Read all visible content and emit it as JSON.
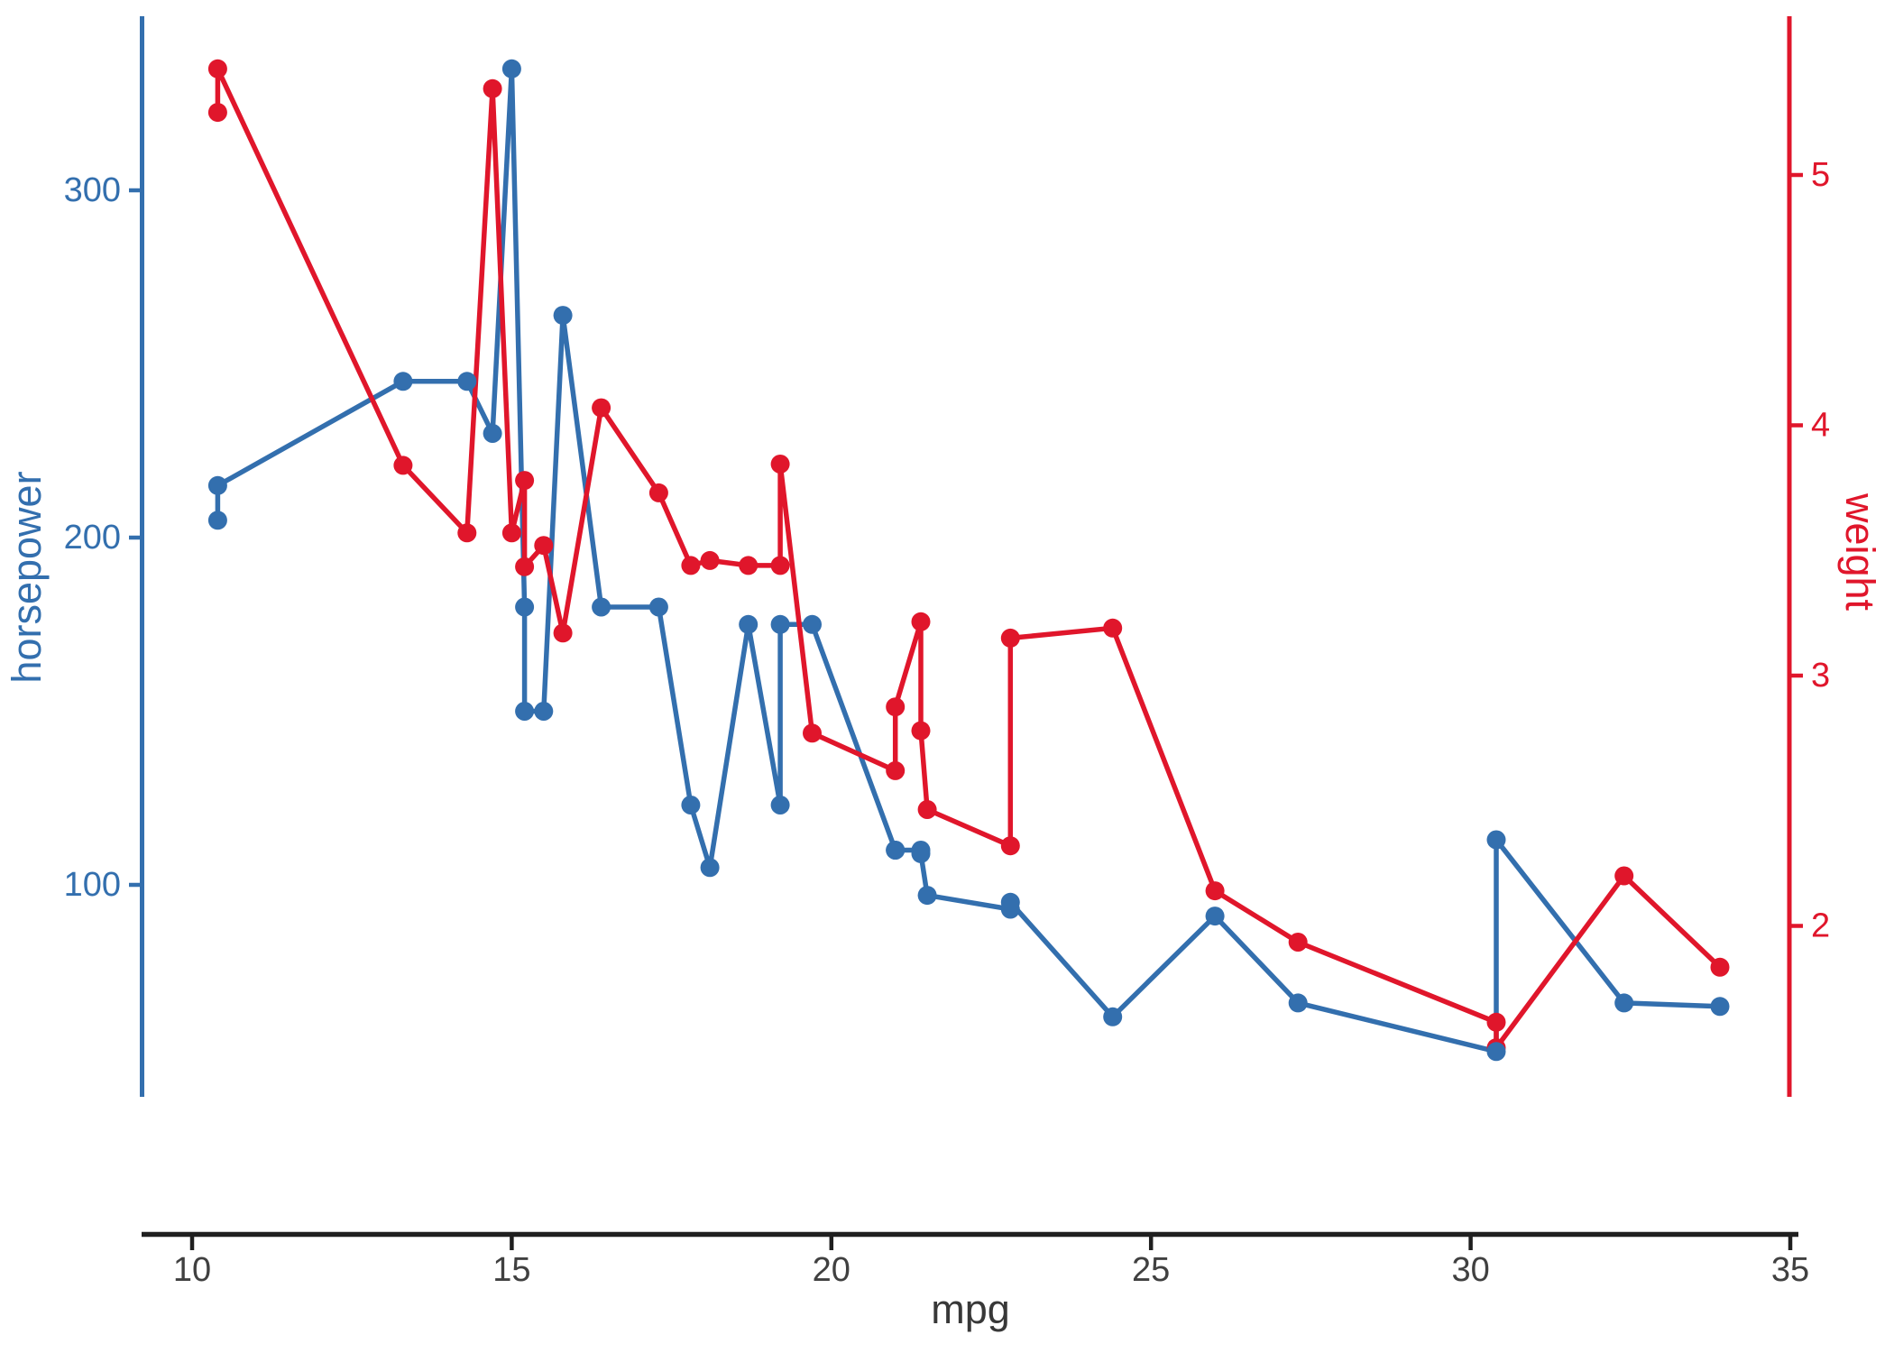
{
  "chart_data": {
    "type": "line",
    "title": "",
    "xlabel": "mpg",
    "x_axis": {
      "label": "mpg",
      "ticks": [
        10,
        15,
        20,
        25,
        30,
        35
      ],
      "domain": [
        10,
        35
      ],
      "tick_color": "#404040",
      "line_color": "#1F1F1F"
    },
    "left_axis": {
      "label": "horsepower",
      "ticks": [
        100,
        200,
        300
      ],
      "domain": [
        52,
        335
      ],
      "color": "#336FAE"
    },
    "right_axis": {
      "label": "weight",
      "ticks": [
        2,
        3,
        4,
        5
      ],
      "domain": [
        1.513,
        5.424
      ],
      "color": "#E0162B"
    },
    "grid": "off",
    "legend": "none",
    "series": [
      {
        "name": "horsepower",
        "axis": "left",
        "color": "#336FAE",
        "marker": "circle",
        "points": [
          [
            10.4,
            205
          ],
          [
            10.4,
            215
          ],
          [
            13.3,
            245
          ],
          [
            14.3,
            245
          ],
          [
            14.7,
            230
          ],
          [
            15.0,
            335
          ],
          [
            15.2,
            180
          ],
          [
            15.2,
            150
          ],
          [
            15.5,
            150
          ],
          [
            15.8,
            264
          ],
          [
            16.4,
            180
          ],
          [
            17.3,
            180
          ],
          [
            17.8,
            123
          ],
          [
            18.1,
            105
          ],
          [
            18.7,
            175
          ],
          [
            19.2,
            123
          ],
          [
            19.2,
            175
          ],
          [
            19.7,
            175
          ],
          [
            21.0,
            110
          ],
          [
            21.0,
            110
          ],
          [
            21.4,
            110
          ],
          [
            21.4,
            109
          ],
          [
            21.5,
            97
          ],
          [
            22.8,
            93
          ],
          [
            22.8,
            95
          ],
          [
            24.4,
            62
          ],
          [
            26.0,
            91
          ],
          [
            27.3,
            66
          ],
          [
            30.4,
            52
          ],
          [
            30.4,
            113
          ],
          [
            32.4,
            66
          ],
          [
            33.9,
            65
          ]
        ]
      },
      {
        "name": "weight",
        "axis": "right",
        "color": "#E0162B",
        "marker": "circle",
        "points": [
          [
            10.4,
            5.25
          ],
          [
            10.4,
            5.424
          ],
          [
            13.3,
            3.84
          ],
          [
            14.3,
            3.57
          ],
          [
            14.7,
            5.345
          ],
          [
            15.0,
            3.57
          ],
          [
            15.2,
            3.78
          ],
          [
            15.2,
            3.435
          ],
          [
            15.5,
            3.52
          ],
          [
            15.8,
            3.17
          ],
          [
            16.4,
            4.07
          ],
          [
            17.3,
            3.73
          ],
          [
            17.8,
            3.44
          ],
          [
            18.1,
            3.46
          ],
          [
            18.7,
            3.44
          ],
          [
            19.2,
            3.44
          ],
          [
            19.2,
            3.845
          ],
          [
            19.7,
            2.77
          ],
          [
            21.0,
            2.62
          ],
          [
            21.0,
            2.875
          ],
          [
            21.4,
            3.215
          ],
          [
            21.4,
            2.78
          ],
          [
            21.5,
            2.465
          ],
          [
            22.8,
            2.32
          ],
          [
            22.8,
            3.15
          ],
          [
            24.4,
            3.19
          ],
          [
            26.0,
            2.14
          ],
          [
            27.3,
            1.935
          ],
          [
            30.4,
            1.615
          ],
          [
            30.4,
            1.513
          ],
          [
            32.4,
            2.2
          ],
          [
            33.9,
            1.835
          ]
        ]
      }
    ]
  },
  "colors": {
    "hp_blue": "#336FAE",
    "wt_red": "#E0162B",
    "axis_dark": "#1F1F1F",
    "x_tick_label": "#404040",
    "background": "#FFFFFF"
  }
}
